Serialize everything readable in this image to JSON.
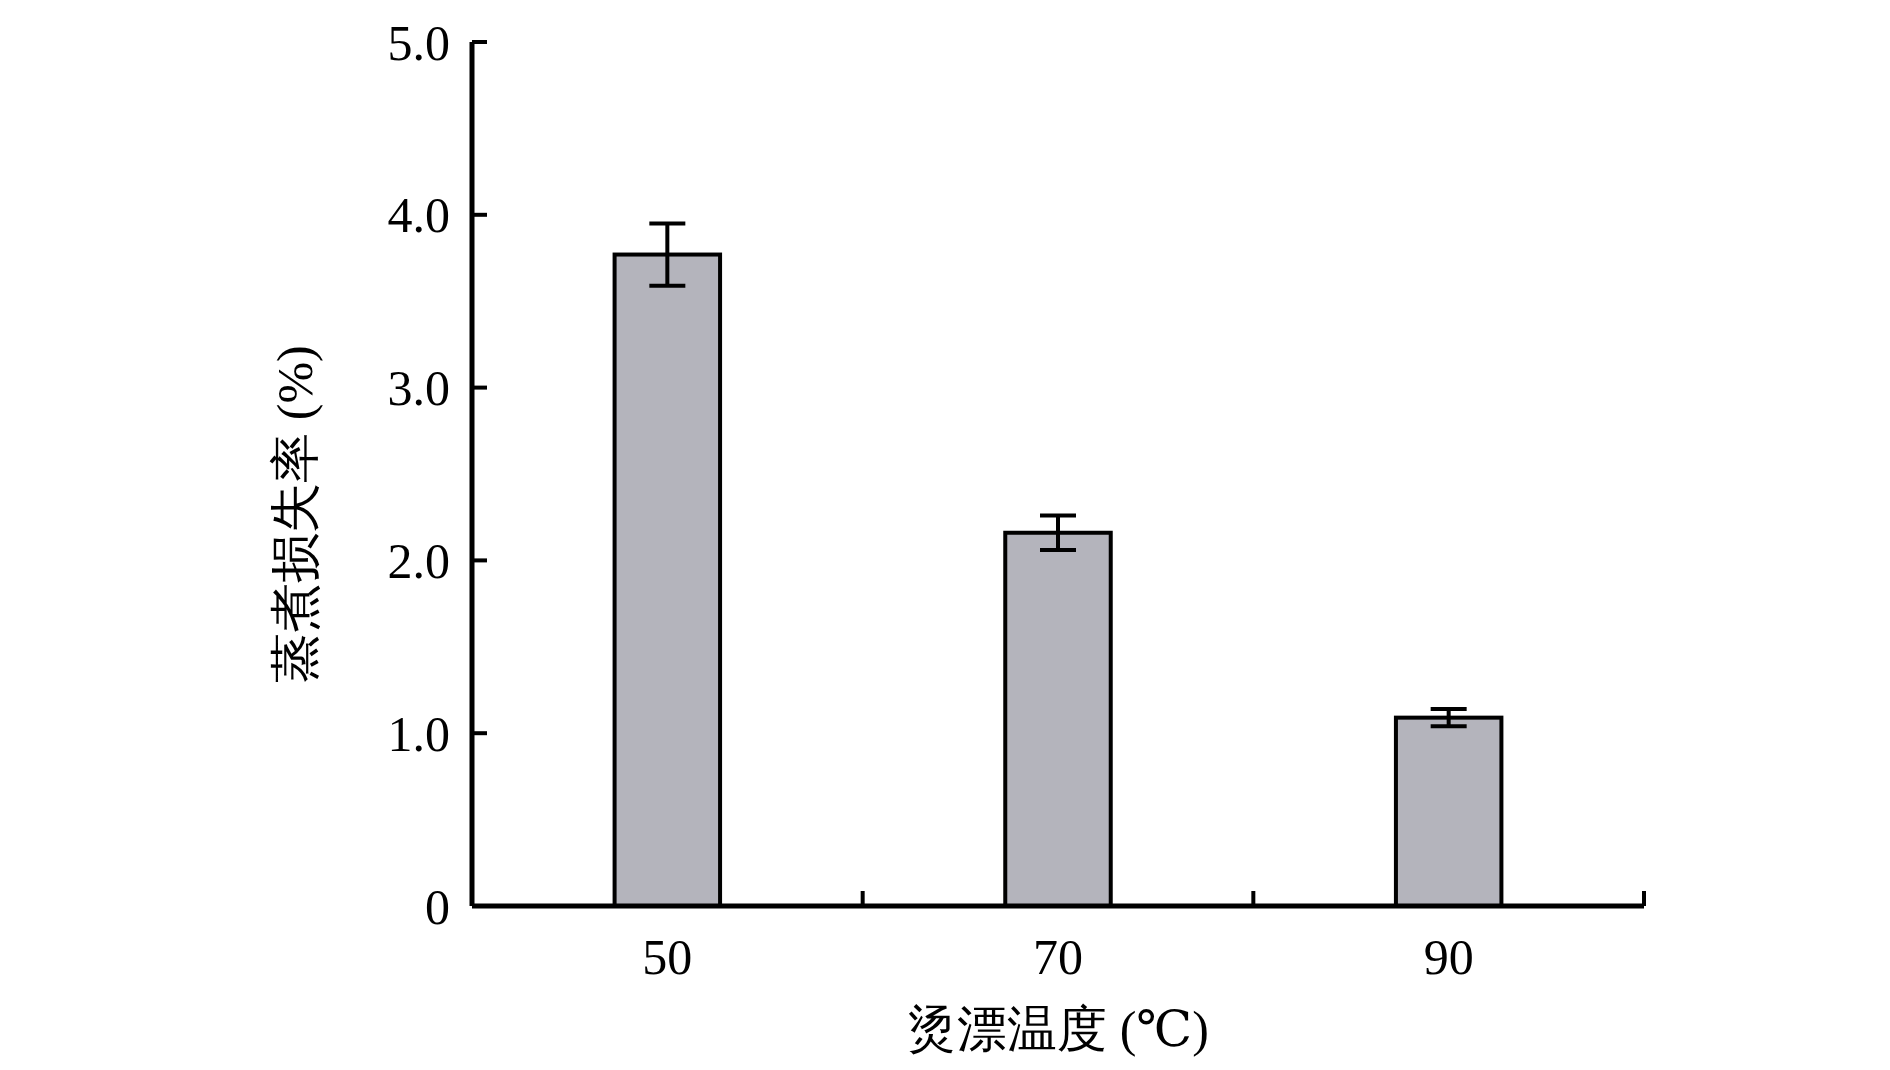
{
  "chart_data": {
    "type": "bar",
    "xlabel": "烫漂温度 (℃)",
    "ylabel": "蒸煮损失率 (%)",
    "categories": [
      "50",
      "70",
      "90"
    ],
    "values": [
      3.77,
      2.16,
      1.09
    ],
    "errors": [
      0.18,
      0.1,
      0.05
    ],
    "color": "#b4b4bc",
    "ylim": [
      0,
      5
    ],
    "yticks": [
      0,
      {
        "value": 1,
        "label": "1.0"
      },
      {
        "value": 2,
        "label": "2.0"
      },
      {
        "value": 3,
        "label": "3.0"
      },
      {
        "value": 4,
        "label": "4.0"
      },
      {
        "value": 5,
        "label": "5.0"
      }
    ],
    "grid": false
  }
}
